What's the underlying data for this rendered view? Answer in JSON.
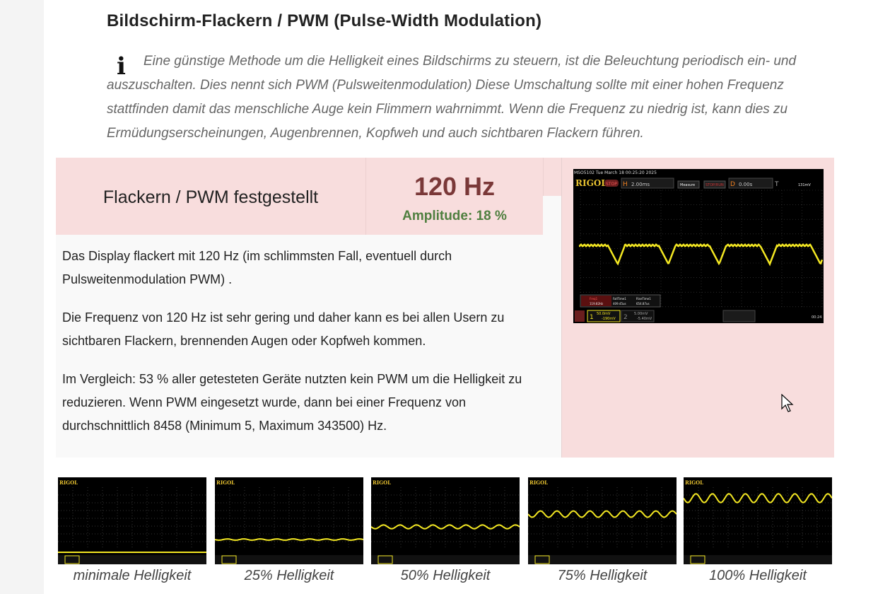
{
  "heading": "Bildschirm-Flackern / PWM (Pulse-Width Modulation)",
  "intro": "Eine günstige Methode um die Helligkeit eines Bildschirms zu steuern, ist die Beleuchtung periodisch ein- und auszuschalten. Dies nennt sich PWM (Pulsweitenmodulation) Diese Umschaltung sollte mit einer hohen Frequenz stattfinden damit das menschliche Auge kein Flimmern wahrnimmt. Wenn die Frequenz zu niedrig ist, kann dies zu Ermüdungserscheinungen, Augenbrennen, Kopfweh und auch sichtbaren Flackern führen.",
  "result": {
    "label": "Flackern / PWM festgestellt",
    "frequency": "120 Hz",
    "amplitude": "Amplitude: 18 %"
  },
  "paragraphs": [
    "Das Display flackert mit 120 Hz (im schlimmsten Fall, eventuell durch Pulsweitenmodulation PWM) .",
    "Die Frequenz von 120 Hz ist sehr gering und daher kann es bei allen Usern zu sichtbaren Flackern, brennenden Augen oder Kopfweh kommen.",
    "Im Vergleich: 53 % aller getesteten Geräte nutzten kein PWM um die Helligkeit zu reduzieren. Wenn PWM eingesetzt wurde, dann bei einer Frequenz von durchschnittlich 8458 (Minimum 5, Maximum 343500) Hz."
  ],
  "scope": {
    "model": "MSO5102",
    "datetime": "Tue March 18 00:25:20 2025",
    "brand": "RIGOL",
    "state": "STOP",
    "timebase": "2.00ms",
    "delay": "0.00s",
    "trigger": "131mV",
    "measure": "Measure",
    "stoprun": "STOP/RUN",
    "freq_label": "Freq1",
    "freq_value": "119.82Hz",
    "fall_label": "FallTime1",
    "fall_value": "409.45us",
    "rise_label": "RiseTime1",
    "rise_value": "654.87us",
    "ch1_scale": "50.0mV",
    "ch1_offset": "-190mV",
    "ch2_scale": "5.00mV",
    "ch2_offset": "-5.40mV",
    "clock": "00:24"
  },
  "colors": {
    "trace": "#f3e722",
    "pink": "#f8dddd",
    "freq": "#7a3838",
    "amp": "#4f7f3f"
  },
  "thumbnails": [
    {
      "caption": "minimale Helligkeit",
      "level": 0.0,
      "ripple": 0.0
    },
    {
      "caption": "25% Helligkeit",
      "level": 0.2,
      "ripple": 0.01
    },
    {
      "caption": "50% Helligkeit",
      "level": 0.4,
      "ripple": 0.03
    },
    {
      "caption": "75% Helligkeit",
      "level": 0.6,
      "ripple": 0.05
    },
    {
      "caption": "100% Helligkeit",
      "level": 0.85,
      "ripple": 0.07
    }
  ]
}
